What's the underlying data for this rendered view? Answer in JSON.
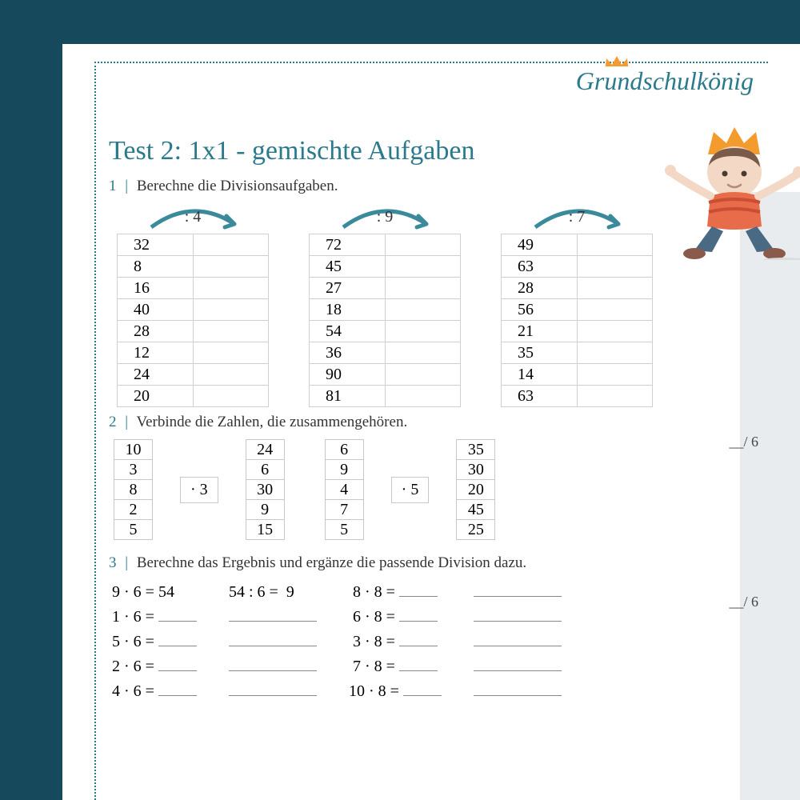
{
  "brand": "Grundschulkönig",
  "colors": {
    "page_bg": "#17495c",
    "sheet_bg": "#ffffff",
    "accent": "#2a7a8c",
    "grey_strip": "#e8ecee",
    "border": "#d0d0d0",
    "text": "#333333",
    "crown": "#f39c2d",
    "arrow": "#3a8a9c"
  },
  "title": "Test 2: 1x1 - gemischte Aufgaben",
  "section1": {
    "num": "1",
    "bar": "|",
    "prompt": "Berechne die Divisionsaufgaben.",
    "columns": [
      {
        "op": ": 4",
        "values": [
          "32",
          "8",
          "16",
          "40",
          "28",
          "12",
          "24",
          "20"
        ]
      },
      {
        "op": ": 9",
        "values": [
          "72",
          "45",
          "27",
          "18",
          "54",
          "36",
          "90",
          "81"
        ]
      },
      {
        "op": ": 7",
        "values": [
          "49",
          "63",
          "28",
          "56",
          "21",
          "35",
          "14",
          "63"
        ]
      }
    ],
    "score": "__/  6"
  },
  "section2": {
    "num": "2",
    "bar": "|",
    "prompt": "Verbinde die Zahlen, die zusammengehören.",
    "groups": [
      {
        "left": [
          "10",
          "3",
          "8",
          "2",
          "5"
        ],
        "op": "· 3",
        "right": [
          "24",
          "6",
          "30",
          "9",
          "15"
        ]
      },
      {
        "left": [
          "6",
          "9",
          "4",
          "7",
          "5"
        ],
        "op": "· 5",
        "right": [
          "35",
          "30",
          "20",
          "45",
          "25"
        ]
      }
    ],
    "score": "__/  6"
  },
  "section3": {
    "num": "3",
    "bar": "|",
    "prompt": "Berechne das Ergebnis und ergänze die passende Division dazu.",
    "col1": [
      "9 · 6 = 54",
      "1 · 6 =",
      "5 · 6 =",
      "2 · 6 =",
      "4 · 6 ="
    ],
    "col2_head": "54 : 6 =  9",
    "col3": [
      "8 · 8 =",
      "6 · 8 =",
      "3 · 8 =",
      "7 · 8 =",
      "10 · 8 ="
    ]
  }
}
